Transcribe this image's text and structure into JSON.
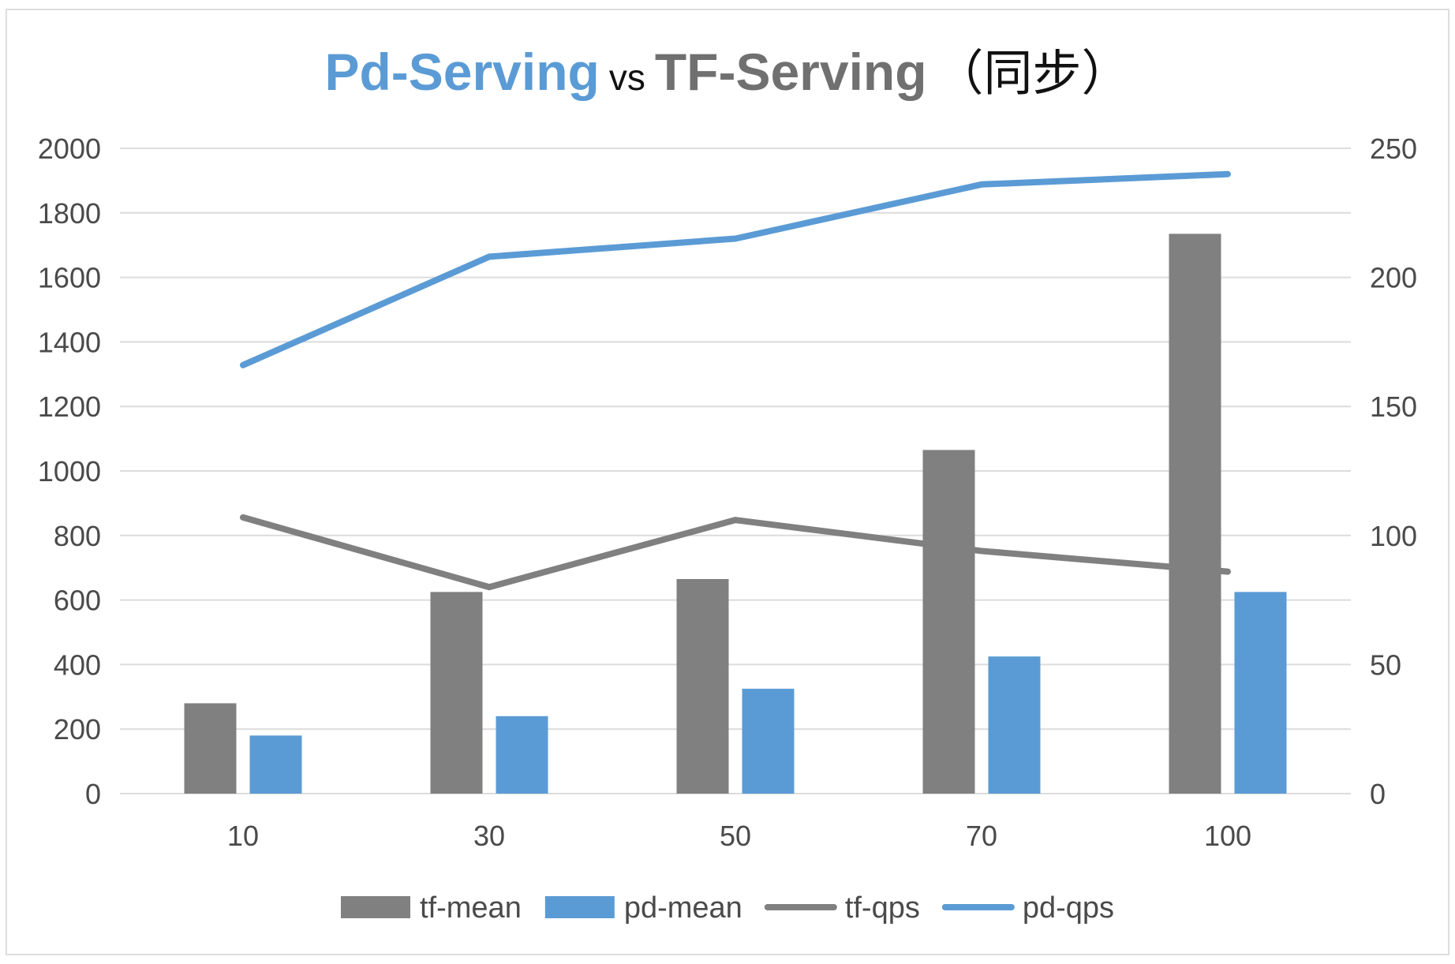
{
  "title": {
    "part1": "Pd-Serving",
    "part2": "vs",
    "part3": "TF-Serving",
    "part4": "（同步）"
  },
  "colors": {
    "tf": "#808080",
    "pd": "#5b9bd5",
    "grid": "#dcdcdc",
    "tick": "#4a4a4a"
  },
  "chart_data": {
    "type": "bar",
    "categories": [
      "10",
      "30",
      "50",
      "70",
      "100"
    ],
    "y_left": {
      "min": 0,
      "max": 2000,
      "step": 200,
      "ticks": [
        "0",
        "200",
        "400",
        "600",
        "800",
        "1000",
        "1200",
        "1400",
        "1600",
        "1800",
        "2000"
      ]
    },
    "y_right": {
      "min": 0,
      "max": 250,
      "step": 50,
      "ticks": [
        "0",
        "50",
        "100",
        "150",
        "200",
        "250"
      ]
    },
    "grid": true,
    "legend_position": "bottom",
    "series": [
      {
        "name": "tf-mean",
        "kind": "bar",
        "axis": "left",
        "color": "#808080",
        "values": [
          280,
          625,
          665,
          1065,
          1735
        ]
      },
      {
        "name": "pd-mean",
        "kind": "bar",
        "axis": "left",
        "color": "#5b9bd5",
        "values": [
          180,
          240,
          325,
          425,
          625
        ]
      },
      {
        "name": "tf-qps",
        "kind": "line",
        "axis": "right",
        "color": "#808080",
        "values": [
          107,
          80,
          106,
          94,
          86
        ]
      },
      {
        "name": "pd-qps",
        "kind": "line",
        "axis": "right",
        "color": "#5b9bd5",
        "values": [
          166,
          208,
          215,
          236,
          240
        ]
      }
    ]
  }
}
